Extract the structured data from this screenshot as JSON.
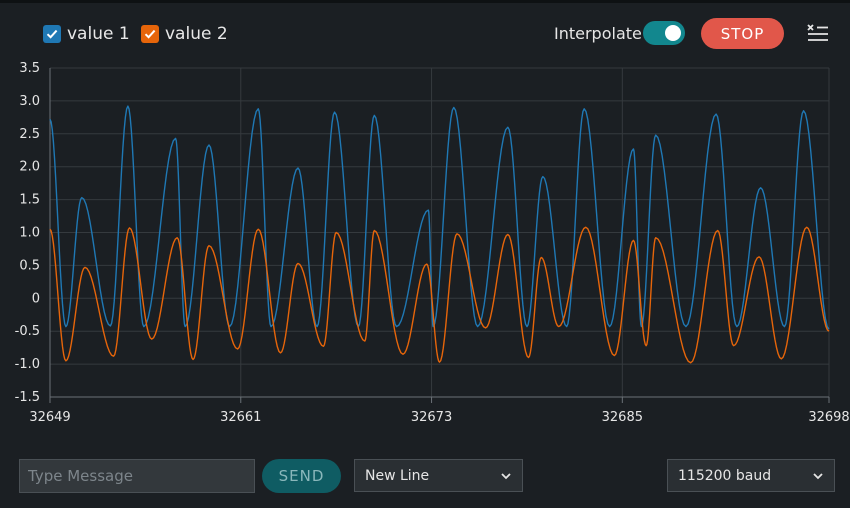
{
  "legend": [
    {
      "label": "value 1",
      "color": "#1f78b4"
    },
    {
      "label": "value 2",
      "color": "#e6650a"
    }
  ],
  "controls": {
    "interpolate_label": "Interpolate",
    "interpolate_on": true,
    "stop_label": "STOP"
  },
  "message": {
    "placeholder": "Type Message",
    "value": ""
  },
  "send_label": "SEND",
  "line_ending": "New Line",
  "baud": "115200 baud",
  "colors": {
    "value1": "#1f78b4",
    "value2": "#e6650a",
    "grid": "#353a3e",
    "background": "#1b1f23",
    "accent": "#12878e",
    "stop": "#e1574a"
  },
  "chart_data": {
    "type": "line",
    "ylim": [
      -1.5,
      3.5
    ],
    "xlim": [
      32649,
      32698
    ],
    "y_ticks": [
      "3.5",
      "3.0",
      "2.5",
      "2.0",
      "1.5",
      "1.0",
      "0.5",
      "0",
      "-0.5",
      "-1.0",
      "-1.5"
    ],
    "x_ticks": [
      "32649",
      "32661",
      "32673",
      "32685",
      "32698"
    ],
    "series": [
      {
        "name": "value 1",
        "peaks": [
          [
            32649.0,
            2.72
          ],
          [
            32651.0,
            1.53
          ],
          [
            32653.9,
            2.92
          ],
          [
            32656.9,
            2.43
          ],
          [
            32659.0,
            2.33
          ],
          [
            32662.1,
            2.88
          ],
          [
            32664.6,
            1.98
          ],
          [
            32666.9,
            2.83
          ],
          [
            32669.4,
            2.78
          ],
          [
            32672.8,
            1.34
          ],
          [
            32674.4,
            2.9
          ],
          [
            32677.8,
            2.6
          ],
          [
            32680.0,
            1.85
          ],
          [
            32682.6,
            2.88
          ],
          [
            32685.7,
            2.27
          ],
          [
            32687.1,
            2.48
          ],
          [
            32690.9,
            2.8
          ],
          [
            32693.7,
            1.68
          ],
          [
            32696.4,
            2.85
          ]
        ],
        "troughs": [
          [
            32650.0,
            -0.43
          ],
          [
            32652.8,
            -0.42
          ],
          [
            32654.9,
            -0.43
          ],
          [
            32657.5,
            -0.43
          ],
          [
            32660.3,
            -0.43
          ],
          [
            32662.9,
            -0.43
          ],
          [
            32665.8,
            -0.43
          ],
          [
            32668.4,
            -0.43
          ],
          [
            32670.8,
            -0.43
          ],
          [
            32673.1,
            -0.43
          ],
          [
            32675.9,
            -0.43
          ],
          [
            32679.0,
            -0.43
          ],
          [
            32681.5,
            -0.43
          ],
          [
            32684.2,
            -0.43
          ],
          [
            32686.2,
            -0.43
          ],
          [
            32689.0,
            -0.43
          ],
          [
            32692.2,
            -0.43
          ],
          [
            32695.2,
            -0.43
          ],
          [
            32698.0,
            -0.47
          ]
        ]
      },
      {
        "name": "value 2",
        "peaks": [
          [
            32649.0,
            1.05
          ],
          [
            32651.2,
            0.47
          ],
          [
            32654.0,
            1.07
          ],
          [
            32657.0,
            0.92
          ],
          [
            32659.0,
            0.8
          ],
          [
            32662.1,
            1.05
          ],
          [
            32664.6,
            0.53
          ],
          [
            32667.0,
            1.0
          ],
          [
            32669.4,
            1.03
          ],
          [
            32672.7,
            0.52
          ],
          [
            32674.6,
            0.98
          ],
          [
            32677.8,
            0.97
          ],
          [
            32679.9,
            0.62
          ],
          [
            32682.7,
            1.08
          ],
          [
            32685.7,
            0.88
          ],
          [
            32687.1,
            0.92
          ],
          [
            32691.0,
            1.03
          ],
          [
            32693.6,
            0.63
          ],
          [
            32696.6,
            1.08
          ]
        ],
        "troughs": [
          [
            32650.0,
            -0.95
          ],
          [
            32653.0,
            -0.88
          ],
          [
            32655.4,
            -0.62
          ],
          [
            32658.0,
            -0.93
          ],
          [
            32660.8,
            -0.77
          ],
          [
            32663.5,
            -0.83
          ],
          [
            32666.2,
            -0.73
          ],
          [
            32668.8,
            -0.65
          ],
          [
            32671.2,
            -0.85
          ],
          [
            32673.5,
            -0.97
          ],
          [
            32676.4,
            -0.45
          ],
          [
            32679.1,
            -0.9
          ],
          [
            32681.0,
            -0.43
          ],
          [
            32684.5,
            -0.87
          ],
          [
            32686.5,
            -0.72
          ],
          [
            32689.3,
            -0.98
          ],
          [
            32692.0,
            -0.72
          ],
          [
            32695.0,
            -0.92
          ],
          [
            32698.0,
            -0.5
          ]
        ]
      }
    ]
  }
}
